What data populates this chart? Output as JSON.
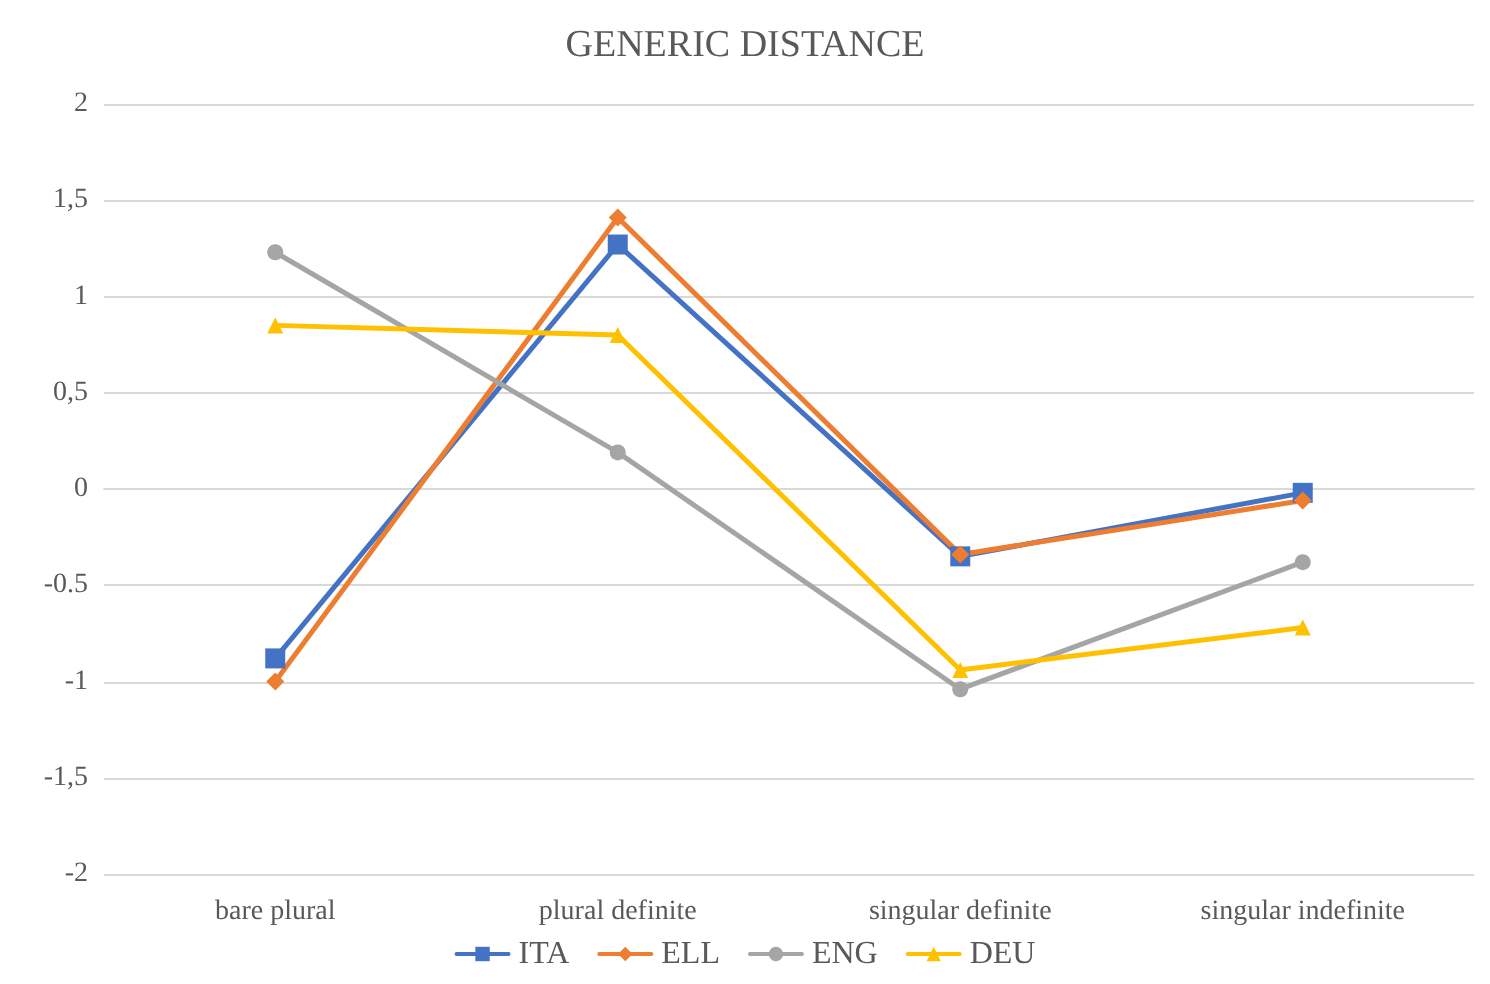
{
  "chart_data": {
    "type": "line",
    "title": "GENERIC DISTANCE",
    "categories": [
      "bare plural",
      "plural definite",
      "singular definite",
      "singular indefinite"
    ],
    "series": [
      {
        "name": "ITA",
        "color": "#4472c4",
        "marker": "square",
        "values": [
          -0.88,
          1.27,
          -0.35,
          -0.02
        ]
      },
      {
        "name": "ELL",
        "color": "#ed7d31",
        "marker": "diamond",
        "values": [
          -1.0,
          1.41,
          -0.34,
          -0.06
        ]
      },
      {
        "name": "ENG",
        "color": "#a5a5a5",
        "marker": "circle",
        "values": [
          1.23,
          0.19,
          -1.04,
          -0.38
        ]
      },
      {
        "name": "DEU",
        "color": "#ffc000",
        "marker": "triangle",
        "values": [
          0.85,
          0.8,
          -0.94,
          -0.72
        ]
      }
    ],
    "ylim": [
      -2,
      2
    ],
    "yticks": [
      {
        "value": -2,
        "label": "-2"
      },
      {
        "value": -1.5,
        "label": "-1,5"
      },
      {
        "value": -1,
        "label": "-1"
      },
      {
        "value": -0.5,
        "label": "-0.5"
      },
      {
        "value": 0,
        "label": "0"
      },
      {
        "value": 0.5,
        "label": "0,5"
      },
      {
        "value": 1,
        "label": "1"
      },
      {
        "value": 1.5,
        "label": "1,5"
      },
      {
        "value": 2,
        "label": "2"
      }
    ],
    "grid": "y",
    "legend": "bottom",
    "line_style": "solid"
  }
}
